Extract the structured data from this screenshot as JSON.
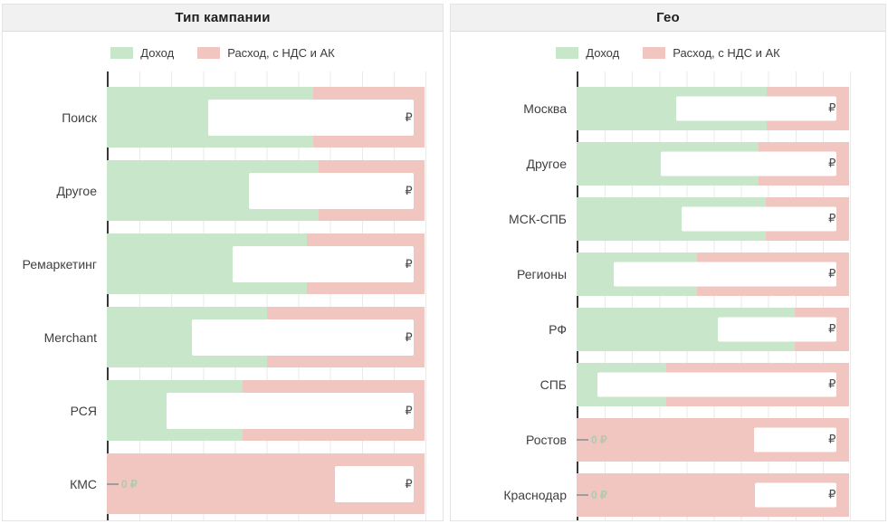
{
  "colors": {
    "income_green": "#c8e6c9",
    "expense_pink": "#f1c5c0",
    "grid_line": "#eaeaea",
    "axis_line": "#383838",
    "header_bg": "#f1f1f1",
    "zero_label_green": "#afcbaf",
    "label_text": "#404040"
  },
  "panels": [
    {
      "title": "Тип кампании",
      "currency_symbol": "₽",
      "zero_label": "0 ₽",
      "legend": [
        {
          "label": "Доход",
          "color": "#c8e6c9"
        },
        {
          "label": "Расход, с НДС и АК",
          "color": "#f1c5c0"
        }
      ],
      "rows": [
        {
          "label": "Поиск",
          "income_pct": 65.0,
          "expense_pct": 100,
          "box_left_pct": 31.8,
          "box_width_pct": 64.7,
          "zero": false
        },
        {
          "label": "Другое",
          "income_pct": 66.8,
          "expense_pct": 100,
          "box_left_pct": 44.7,
          "box_width_pct": 51.8,
          "zero": false
        },
        {
          "label": "Ремаркетинг",
          "income_pct": 63.0,
          "expense_pct": 100,
          "box_left_pct": 39.5,
          "box_width_pct": 57.0,
          "zero": false
        },
        {
          "label": "Merchant",
          "income_pct": 50.4,
          "expense_pct": 100,
          "box_left_pct": 26.9,
          "box_width_pct": 69.6,
          "zero": false
        },
        {
          "label": "РСЯ",
          "income_pct": 42.7,
          "expense_pct": 100,
          "box_left_pct": 18.9,
          "box_width_pct": 77.6,
          "zero": false
        },
        {
          "label": "КМС",
          "income_pct": 0,
          "expense_pct": 100,
          "box_left_pct": 71.9,
          "box_width_pct": 24.6,
          "zero": true
        }
      ]
    },
    {
      "title": "Гео",
      "currency_symbol": "₽",
      "zero_label": "0 ₽",
      "legend": [
        {
          "label": "Доход",
          "color": "#c8e6c9"
        },
        {
          "label": "Расход, с НДС и АК",
          "color": "#f1c5c0"
        }
      ],
      "rows": [
        {
          "label": "Москва",
          "income_pct": 69.8,
          "expense_pct": 100,
          "box_left_pct": 36.5,
          "box_width_pct": 59.0,
          "zero": false
        },
        {
          "label": "Другое",
          "income_pct": 66.8,
          "expense_pct": 100,
          "box_left_pct": 30.9,
          "box_width_pct": 64.6,
          "zero": false
        },
        {
          "label": "МСК-СПБ",
          "income_pct": 69.4,
          "expense_pct": 100,
          "box_left_pct": 38.5,
          "box_width_pct": 57.0,
          "zero": false
        },
        {
          "label": "Регионы",
          "income_pct": 44.2,
          "expense_pct": 100,
          "box_left_pct": 13.6,
          "box_width_pct": 81.9,
          "zero": false
        },
        {
          "label": "РФ",
          "income_pct": 80.1,
          "expense_pct": 100,
          "box_left_pct": 51.8,
          "box_width_pct": 43.7,
          "zero": false
        },
        {
          "label": "СПБ",
          "income_pct": 32.9,
          "expense_pct": 100,
          "box_left_pct": 7.6,
          "box_width_pct": 87.9,
          "zero": false
        },
        {
          "label": "Ростов",
          "income_pct": 0,
          "expense_pct": 100,
          "box_left_pct": 65.1,
          "box_width_pct": 30.4,
          "zero": true
        },
        {
          "label": "Краснодар",
          "income_pct": 0,
          "expense_pct": 100,
          "box_left_pct": 65.4,
          "box_width_pct": 30.1,
          "zero": true
        }
      ]
    }
  ],
  "chart_data": [
    {
      "type": "bar",
      "orientation": "horizontal",
      "title": "Тип кампании",
      "legend_entries": [
        "Доход",
        "Расход, с НДС и АК"
      ],
      "legend_position": "top",
      "grid": "vertical, 10 intervals",
      "categories": [
        "Поиск",
        "Другое",
        "Ремаркетинг",
        "Merchant",
        "РСЯ",
        "КМС"
      ],
      "series": [
        {
          "name": "Доход",
          "extent_pct_of_axis": [
            65.0,
            66.8,
            63.0,
            50.4,
            42.7,
            0
          ]
        },
        {
          "name": "Расход, с НДС и АК",
          "extent_pct_of_axis": [
            100,
            100,
            100,
            100,
            100,
            100
          ]
        }
      ],
      "value_labels": "numeric ₽ amounts hidden by white redaction boxes; only trailing ₽ sign visible; zero-income rows annotated 0 ₽",
      "xlabel": "",
      "ylabel": ""
    },
    {
      "type": "bar",
      "orientation": "horizontal",
      "title": "Гео",
      "legend_entries": [
        "Доход",
        "Расход, с НДС и АК"
      ],
      "legend_position": "top",
      "grid": "vertical, 10 intervals",
      "categories": [
        "Москва",
        "Другое",
        "МСК-СПБ",
        "Регионы",
        "РФ",
        "СПБ",
        "Ростов",
        "Краснодар"
      ],
      "series": [
        {
          "name": "Доход",
          "extent_pct_of_axis": [
            69.8,
            66.8,
            69.4,
            44.2,
            80.1,
            32.9,
            0,
            0
          ]
        },
        {
          "name": "Расход, с НДС и АК",
          "extent_pct_of_axis": [
            100,
            100,
            100,
            100,
            100,
            100,
            100,
            100
          ]
        }
      ],
      "value_labels": "numeric ₽ amounts hidden by white redaction boxes; only trailing ₽ sign visible; zero-income rows annotated 0 ₽",
      "xlabel": "",
      "ylabel": ""
    }
  ]
}
